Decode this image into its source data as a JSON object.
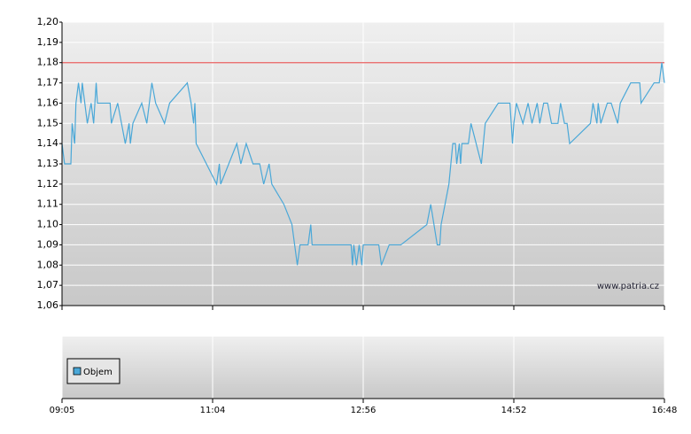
{
  "chart_data": {
    "type": "line",
    "x": [
      "09:05",
      "09:07",
      "09:12",
      "09:13",
      "09:15",
      "09:16",
      "09:18",
      "09:20",
      "09:21",
      "09:23",
      "09:25",
      "09:28",
      "09:30",
      "09:32",
      "09:33",
      "09:34",
      "09:43",
      "09:44",
      "09:49",
      "09:55",
      "09:58",
      "09:59",
      "10:01",
      "10:08",
      "10:12",
      "10:16",
      "10:19",
      "10:26",
      "10:30",
      "10:44",
      "10:47",
      "10:49",
      "10:50",
      "10:51",
      "11:07",
      "11:09",
      "11:10",
      "11:22",
      "11:25",
      "11:29",
      "11:34",
      "11:39",
      "11:42",
      "11:46",
      "11:48",
      "11:57",
      "12:03",
      "12:07",
      "12:09",
      "12:15",
      "12:17",
      "12:18",
      "12:47",
      "12:48",
      "12:49",
      "12:51",
      "12:53",
      "12:55",
      "12:56",
      "12:59",
      "13:08",
      "13:10",
      "13:16",
      "13:25",
      "13:45",
      "13:48",
      "13:53",
      "13:55",
      "13:56",
      "13:59",
      "14:02",
      "14:05",
      "14:07",
      "14:08",
      "14:10",
      "14:11",
      "14:12",
      "14:17",
      "14:19",
      "14:23",
      "14:27",
      "14:30",
      "14:40",
      "14:49",
      "14:51",
      "14:52",
      "14:54",
      "14:59",
      "15:03",
      "15:06",
      "15:10",
      "15:12",
      "15:15",
      "15:18",
      "15:21",
      "15:26",
      "15:28",
      "15:31",
      "15:33",
      "15:35",
      "15:51",
      "15:53",
      "15:56",
      "15:57",
      "15:59",
      "16:04",
      "16:07",
      "16:12",
      "16:14",
      "16:22",
      "16:29",
      "16:30",
      "16:40",
      "16:44",
      "16:46",
      "16:48"
    ],
    "series": [
      {
        "color": "#4aa8d8",
        "values": [
          1.14,
          1.13,
          1.13,
          1.15,
          1.14,
          1.16,
          1.17,
          1.16,
          1.17,
          1.16,
          1.15,
          1.16,
          1.15,
          1.17,
          1.16,
          1.16,
          1.16,
          1.15,
          1.16,
          1.14,
          1.15,
          1.14,
          1.15,
          1.16,
          1.15,
          1.17,
          1.16,
          1.15,
          1.16,
          1.17,
          1.16,
          1.15,
          1.16,
          1.14,
          1.12,
          1.13,
          1.12,
          1.14,
          1.13,
          1.14,
          1.13,
          1.13,
          1.12,
          1.13,
          1.12,
          1.11,
          1.1,
          1.08,
          1.09,
          1.09,
          1.1,
          1.09,
          1.09,
          1.08,
          1.09,
          1.08,
          1.09,
          1.08,
          1.09,
          1.09,
          1.09,
          1.08,
          1.09,
          1.09,
          1.1,
          1.11,
          1.09,
          1.09,
          1.1,
          1.11,
          1.12,
          1.14,
          1.14,
          1.13,
          1.14,
          1.13,
          1.14,
          1.14,
          1.15,
          1.14,
          1.13,
          1.15,
          1.16,
          1.16,
          1.14,
          1.15,
          1.16,
          1.15,
          1.16,
          1.15,
          1.16,
          1.15,
          1.16,
          1.16,
          1.15,
          1.15,
          1.16,
          1.15,
          1.15,
          1.14,
          1.15,
          1.16,
          1.15,
          1.16,
          1.15,
          1.16,
          1.16,
          1.15,
          1.16,
          1.17,
          1.17,
          1.16,
          1.17,
          1.17,
          1.18,
          1.17
        ]
      }
    ],
    "xlim": [
      "09:05",
      "16:48"
    ],
    "xticks": [
      "09:05",
      "11:04",
      "12:56",
      "14:52",
      "16:48"
    ],
    "ylim": [
      1.06,
      1.2
    ],
    "yticks": [
      {
        "value": 1.06,
        "label": "1,06"
      },
      {
        "value": 1.07,
        "label": "1,07"
      },
      {
        "value": 1.08,
        "label": "1,08"
      },
      {
        "value": 1.09,
        "label": "1,09"
      },
      {
        "value": 1.1,
        "label": "1,10"
      },
      {
        "value": 1.11,
        "label": "1,11"
      },
      {
        "value": 1.12,
        "label": "1,12"
      },
      {
        "value": 1.13,
        "label": "1,13"
      },
      {
        "value": 1.14,
        "label": "1,14"
      },
      {
        "value": 1.15,
        "label": "1,15"
      },
      {
        "value": 1.16,
        "label": "1,16"
      },
      {
        "value": 1.17,
        "label": "1,17"
      },
      {
        "value": 1.18,
        "label": "1,18"
      },
      {
        "value": 1.19,
        "label": "1,19"
      },
      {
        "value": 1.2,
        "label": "1,20"
      }
    ],
    "grid": true,
    "reference_line": {
      "value": 1.18,
      "color": "#e86060"
    },
    "volume": {
      "name": "Objem",
      "color": "#4aa8d8"
    },
    "watermark": "www.patria.cz"
  }
}
